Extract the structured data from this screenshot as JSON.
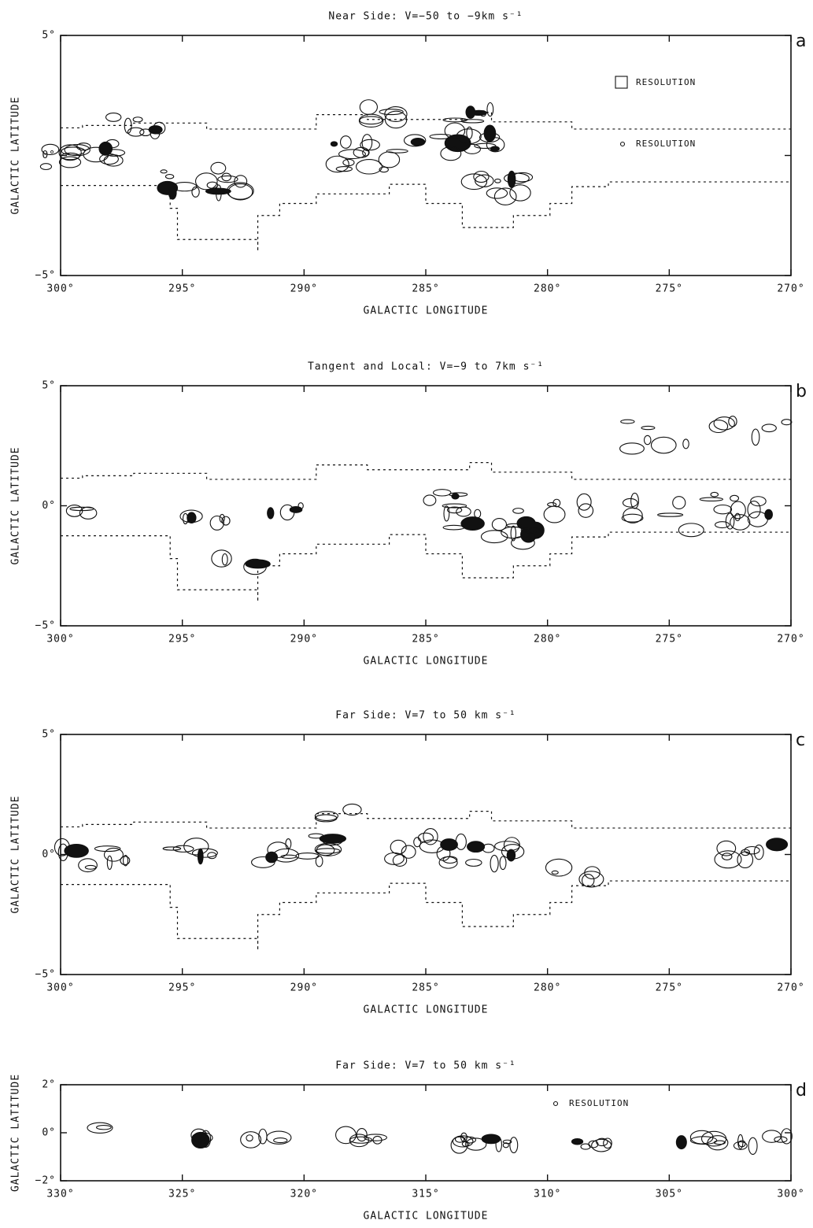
{
  "chart_data": [
    {
      "type": "map",
      "title": "Near Side: V=−50 to −9km s⁻¹",
      "panel": "a",
      "xlabel": "GALACTIC LONGITUDE",
      "ylabel": "GALACTIC LATITUDE",
      "xlim": [
        300,
        270
      ],
      "ylim": [
        -5,
        5
      ],
      "xticks": [
        {
          "value": 300,
          "label": "300°"
        },
        {
          "value": 295,
          "label": "295°"
        },
        {
          "value": 290,
          "label": "290°"
        },
        {
          "value": 285,
          "label": "285°"
        },
        {
          "value": 280,
          "label": "280°"
        },
        {
          "value": 275,
          "label": "275°"
        },
        {
          "value": 270,
          "label": "270°"
        }
      ],
      "yticks": [
        {
          "value": -5,
          "label": "−5°"
        },
        {
          "value": 0,
          "label": "0°"
        },
        {
          "value": 5,
          "label": "5°"
        }
      ],
      "annotations": [
        "RESOLUTION",
        "RESOLUTION"
      ]
    },
    {
      "type": "map",
      "title": "Tangent and Local: V=−9 to 7km s⁻¹",
      "panel": "b",
      "xlabel": "GALACTIC LONGITUDE",
      "ylabel": "GALACTIC LATITUDE",
      "xlim": [
        300,
        270
      ],
      "ylim": [
        -5,
        5
      ],
      "xticks": [
        {
          "value": 300,
          "label": "300°"
        },
        {
          "value": 295,
          "label": "295°"
        },
        {
          "value": 290,
          "label": "290°"
        },
        {
          "value": 285,
          "label": "285°"
        },
        {
          "value": 280,
          "label": "280°"
        },
        {
          "value": 275,
          "label": "275°"
        },
        {
          "value": 270,
          "label": "270°"
        }
      ],
      "yticks": [
        {
          "value": -5,
          "label": "−5°"
        },
        {
          "value": 0,
          "label": "0°"
        },
        {
          "value": 5,
          "label": "5°"
        }
      ],
      "annotations": []
    },
    {
      "type": "map",
      "title": "Far Side: V=7 to 50 km s⁻¹",
      "panel": "c",
      "xlabel": "GALACTIC LONGITUDE",
      "ylabel": "GALACTIC LATITUDE",
      "xlim": [
        300,
        270
      ],
      "ylim": [
        -5,
        5
      ],
      "xticks": [
        {
          "value": 300,
          "label": "300°"
        },
        {
          "value": 295,
          "label": "295°"
        },
        {
          "value": 290,
          "label": "290°"
        },
        {
          "value": 285,
          "label": "285°"
        },
        {
          "value": 280,
          "label": "280°"
        },
        {
          "value": 275,
          "label": "275°"
        },
        {
          "value": 270,
          "label": "270°"
        }
      ],
      "yticks": [
        {
          "value": -5,
          "label": "−5°"
        },
        {
          "value": 0,
          "label": "0°"
        },
        {
          "value": 5,
          "label": "5°"
        }
      ],
      "annotations": []
    },
    {
      "type": "map",
      "title": "Far Side: V=7 to 50 km s⁻¹",
      "panel": "d",
      "xlabel": "GALACTIC LONGITUDE",
      "ylabel": "GALACTIC LATITUDE",
      "xlim": [
        330,
        300
      ],
      "ylim": [
        -2,
        2
      ],
      "xticks": [
        {
          "value": 330,
          "label": "330°"
        },
        {
          "value": 325,
          "label": "325°"
        },
        {
          "value": 320,
          "label": "320°"
        },
        {
          "value": 315,
          "label": "315°"
        },
        {
          "value": 310,
          "label": "310°"
        },
        {
          "value": 305,
          "label": "305°"
        },
        {
          "value": 300,
          "label": "300°"
        }
      ],
      "yticks": [
        {
          "value": -2,
          "label": "−2°"
        },
        {
          "value": 0,
          "label": "0°"
        },
        {
          "value": 2,
          "label": "2°"
        }
      ],
      "annotations": [
        "RESOLUTION"
      ]
    }
  ]
}
